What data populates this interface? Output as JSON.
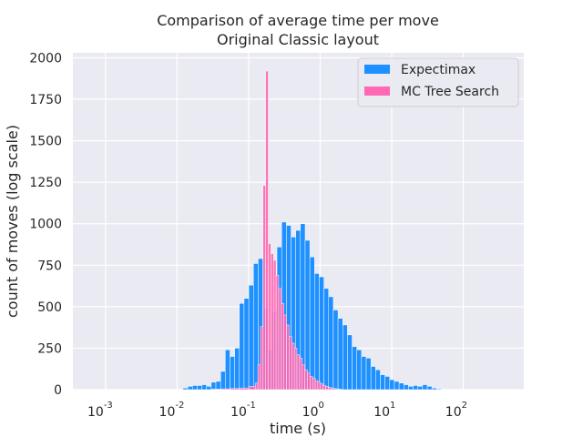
{
  "chart_data": {
    "type": "bar",
    "title": "Comparison of average time per move",
    "subtitle": "Original Classic layout",
    "xlabel": "time (s)",
    "ylabel": "count of moves (log scale)",
    "x_scale": "log",
    "x_tick_labels": [
      "10",
      "10",
      "10",
      "10",
      "10",
      "10"
    ],
    "x_tick_exponents": [
      "-3",
      "-2",
      "-1",
      "0",
      "1",
      "2"
    ],
    "x_tick_values": [
      0.001,
      0.01,
      0.1,
      1,
      10,
      100
    ],
    "xlim": [
      0.00035,
      700
    ],
    "ylim": [
      0,
      2030
    ],
    "y_ticks": [
      0,
      250,
      500,
      750,
      1000,
      1250,
      1500,
      1750,
      2000
    ],
    "grid": true,
    "legend": "top-right",
    "style": {
      "background": "#EAEAF2",
      "grid": "#FFFFFF"
    },
    "series": [
      {
        "name": "Expectimax",
        "color": "#1E90FF",
        "bins": [
          {
            "x": 0.0121,
            "y": 10
          },
          {
            "x": 0.0141,
            "y": 20
          },
          {
            "x": 0.0164,
            "y": 25
          },
          {
            "x": 0.0191,
            "y": 25
          },
          {
            "x": 0.0222,
            "y": 30
          },
          {
            "x": 0.0258,
            "y": 20
          },
          {
            "x": 0.03,
            "y": 45
          },
          {
            "x": 0.0349,
            "y": 50
          },
          {
            "x": 0.0406,
            "y": 110
          },
          {
            "x": 0.0472,
            "y": 240
          },
          {
            "x": 0.0549,
            "y": 200
          },
          {
            "x": 0.0639,
            "y": 250
          },
          {
            "x": 0.0743,
            "y": 520
          },
          {
            "x": 0.0864,
            "y": 550
          },
          {
            "x": 0.1005,
            "y": 630
          },
          {
            "x": 0.1169,
            "y": 760
          },
          {
            "x": 0.136,
            "y": 790
          },
          {
            "x": 0.1582,
            "y": 490
          },
          {
            "x": 0.184,
            "y": 240
          },
          {
            "x": 0.214,
            "y": 470
          },
          {
            "x": 0.2489,
            "y": 860
          },
          {
            "x": 0.2895,
            "y": 1010
          },
          {
            "x": 0.3367,
            "y": 990
          },
          {
            "x": 0.3917,
            "y": 920
          },
          {
            "x": 0.4556,
            "y": 960
          },
          {
            "x": 0.5299,
            "y": 1000
          },
          {
            "x": 0.6164,
            "y": 900
          },
          {
            "x": 0.7169,
            "y": 800
          },
          {
            "x": 0.8339,
            "y": 700
          },
          {
            "x": 0.9699,
            "y": 680
          },
          {
            "x": 1.128,
            "y": 610
          },
          {
            "x": 1.312,
            "y": 560
          },
          {
            "x": 1.526,
            "y": 480
          },
          {
            "x": 1.775,
            "y": 430
          },
          {
            "x": 2.065,
            "y": 390
          },
          {
            "x": 2.402,
            "y": 330
          },
          {
            "x": 2.793,
            "y": 260
          },
          {
            "x": 3.249,
            "y": 240
          },
          {
            "x": 3.779,
            "y": 200
          },
          {
            "x": 4.396,
            "y": 190
          },
          {
            "x": 5.113,
            "y": 140
          },
          {
            "x": 5.947,
            "y": 120
          },
          {
            "x": 6.917,
            "y": 90
          },
          {
            "x": 8.045,
            "y": 80
          },
          {
            "x": 9.358,
            "y": 60
          },
          {
            "x": 10.88,
            "y": 50
          },
          {
            "x": 12.66,
            "y": 40
          },
          {
            "x": 14.73,
            "y": 30
          },
          {
            "x": 17.13,
            "y": 20
          },
          {
            "x": 19.92,
            "y": 25
          },
          {
            "x": 23.17,
            "y": 20
          },
          {
            "x": 26.95,
            "y": 30
          },
          {
            "x": 31.35,
            "y": 20
          },
          {
            "x": 36.47,
            "y": 10
          },
          {
            "x": 42.42,
            "y": 5
          }
        ]
      },
      {
        "name": "MC Tree Search",
        "color": "#FF69B4",
        "bins": [
          {
            "x": 0.03,
            "y": 3
          },
          {
            "x": 0.0406,
            "y": 5
          },
          {
            "x": 0.0549,
            "y": 8
          },
          {
            "x": 0.0743,
            "y": 10
          },
          {
            "x": 0.1005,
            "y": 20
          },
          {
            "x": 0.1237,
            "y": 40
          },
          {
            "x": 0.1345,
            "y": 150
          },
          {
            "x": 0.1463,
            "y": 380
          },
          {
            "x": 0.1591,
            "y": 1230
          },
          {
            "x": 0.173,
            "y": 1920
          },
          {
            "x": 0.1882,
            "y": 880
          },
          {
            "x": 0.2047,
            "y": 820
          },
          {
            "x": 0.2226,
            "y": 780
          },
          {
            "x": 0.2421,
            "y": 690
          },
          {
            "x": 0.2633,
            "y": 610
          },
          {
            "x": 0.2864,
            "y": 520
          },
          {
            "x": 0.3115,
            "y": 450
          },
          {
            "x": 0.3387,
            "y": 390
          },
          {
            "x": 0.3684,
            "y": 320
          },
          {
            "x": 0.4007,
            "y": 280
          },
          {
            "x": 0.4357,
            "y": 250
          },
          {
            "x": 0.4739,
            "y": 210
          },
          {
            "x": 0.5154,
            "y": 190
          },
          {
            "x": 0.5605,
            "y": 150
          },
          {
            "x": 0.6096,
            "y": 120
          },
          {
            "x": 0.663,
            "y": 100
          },
          {
            "x": 0.721,
            "y": 80
          },
          {
            "x": 0.7842,
            "y": 70
          },
          {
            "x": 0.8528,
            "y": 55
          },
          {
            "x": 0.9275,
            "y": 45
          },
          {
            "x": 1.009,
            "y": 35
          },
          {
            "x": 1.097,
            "y": 25
          },
          {
            "x": 1.193,
            "y": 20
          },
          {
            "x": 1.298,
            "y": 15
          },
          {
            "x": 1.411,
            "y": 10
          },
          {
            "x": 1.535,
            "y": 8
          },
          {
            "x": 1.669,
            "y": 5
          },
          {
            "x": 1.815,
            "y": 3
          }
        ]
      }
    ]
  }
}
